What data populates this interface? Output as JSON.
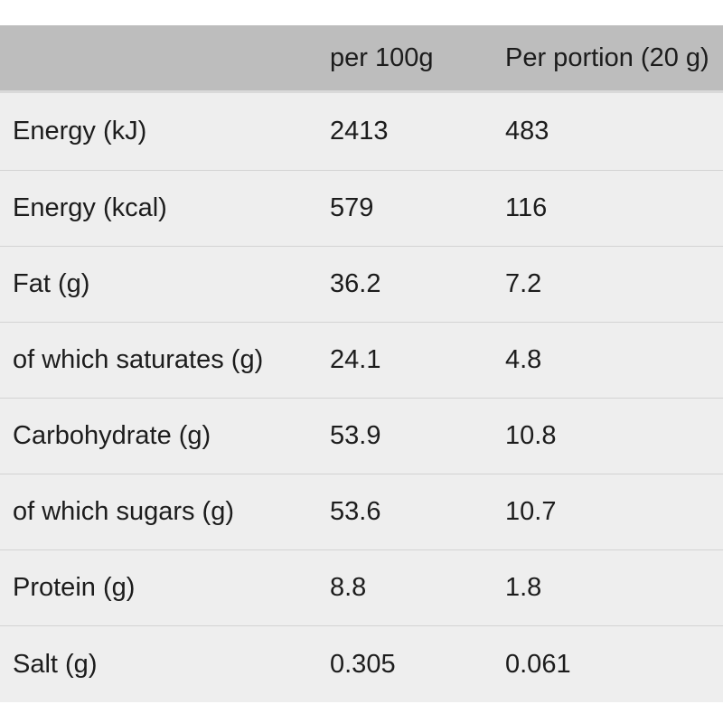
{
  "table": {
    "headers": [
      "",
      "per 100g",
      "Per portion (20 g)"
    ],
    "rows": [
      [
        "Energy (kJ)",
        "2413",
        "483"
      ],
      [
        "Energy (kcal)",
        "579",
        "116"
      ],
      [
        "Fat (g)",
        "36.2",
        "7.2"
      ],
      [
        "of which saturates (g)",
        "24.1",
        "4.8"
      ],
      [
        "Carbohydrate (g)",
        "53.9",
        "10.8"
      ],
      [
        "of which sugars (g)",
        "53.6",
        "10.7"
      ],
      [
        "Protein (g)",
        "8.8",
        "1.8"
      ],
      [
        "Salt (g)",
        "0.305",
        "0.061"
      ]
    ]
  },
  "colors": {
    "header_bg": "#bdbdbd",
    "row_bg": "#eeeeee",
    "divider": "#d3d3d3",
    "text": "#1c1c1c"
  }
}
